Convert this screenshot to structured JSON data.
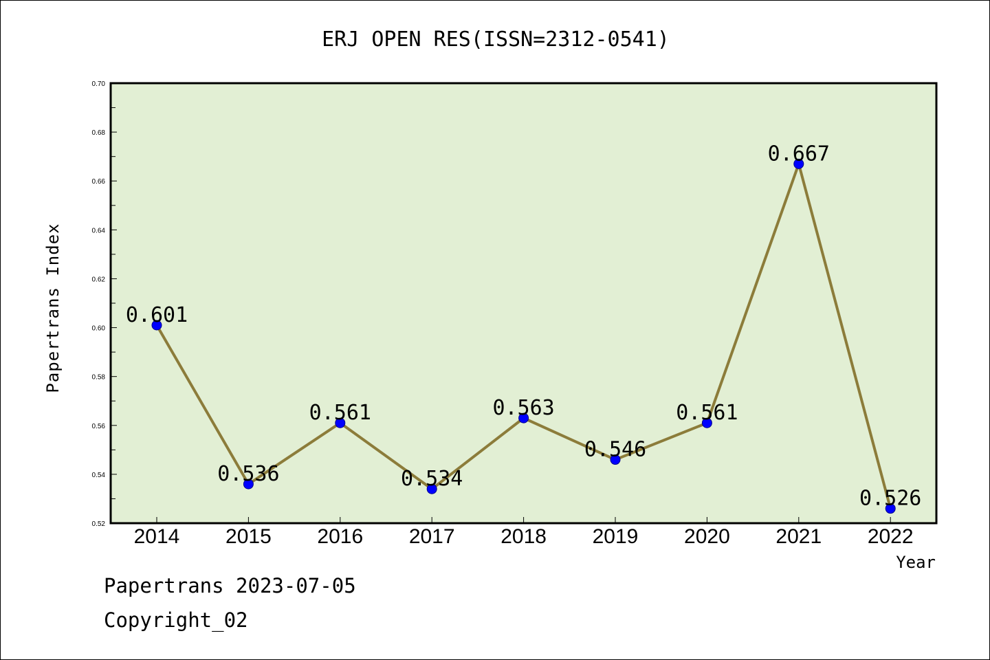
{
  "footer": {
    "line1": "Papertrans 2023-07-05",
    "line2": "Copyright_02"
  },
  "colors": {
    "plot_background": "#e2efd4",
    "line": "#8c7c3a",
    "marker": "#0000ff",
    "frame": "#000000"
  },
  "chart_data": {
    "type": "line",
    "title": "ERJ OPEN RES(ISSN=2312-0541)",
    "xlabel": "Year",
    "ylabel": "Papertrans Index",
    "categories": [
      "2014",
      "2015",
      "2016",
      "2017",
      "2018",
      "2019",
      "2020",
      "2021",
      "2022"
    ],
    "series": [
      {
        "values": [
          0.601,
          0.536,
          0.561,
          0.534,
          0.563,
          0.546,
          0.561,
          0.667,
          0.526
        ],
        "labels": [
          "0.601",
          "0.536",
          "0.561",
          "0.534",
          "0.563",
          "0.546",
          "0.561",
          "0.667",
          "0.526"
        ]
      }
    ],
    "ylim": [
      0.52,
      0.7
    ],
    "yticks": [
      "0.52",
      "0.54",
      "0.56",
      "0.58",
      "0.60",
      "0.62",
      "0.64",
      "0.66",
      "0.68",
      "0.70"
    ],
    "grid": false,
    "legend": "none"
  }
}
